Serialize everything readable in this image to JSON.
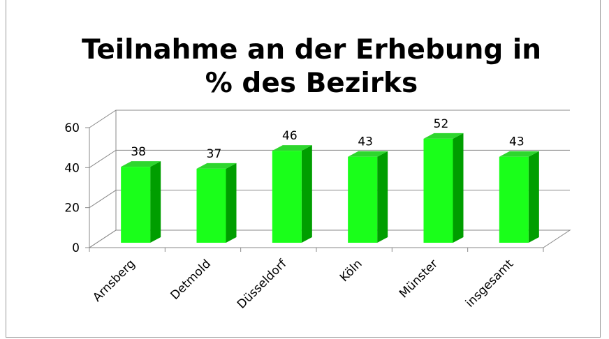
{
  "chart_data": {
    "type": "bar3d",
    "title": "Teilnahme an der Erhebung in % des Bezirks",
    "categories": [
      "Arnsberg",
      "Detmold",
      "Düsseldorf",
      "Köln",
      "Münster",
      "insgesamt"
    ],
    "values": [
      38,
      37,
      46,
      43,
      52,
      43
    ],
    "color": "#1aff1a",
    "ylim": [
      0,
      60
    ],
    "yticks": [
      0,
      20,
      40,
      60
    ],
    "grid": true
  }
}
